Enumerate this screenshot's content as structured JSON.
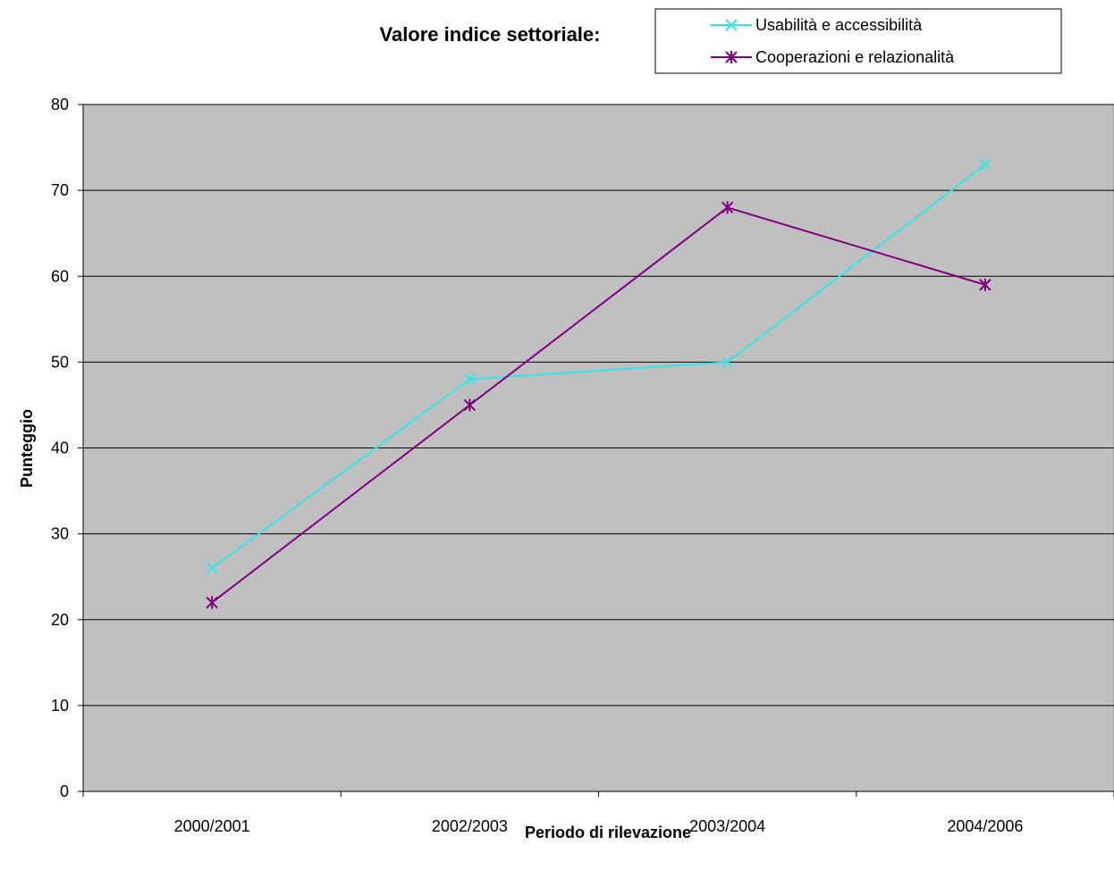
{
  "chart_data": {
    "type": "line",
    "title": "Valore indice settoriale:",
    "xlabel": "Periodo di rilevazione",
    "ylabel": "Punteggio",
    "categories": [
      "2000/2001",
      "2002/2003",
      "2003/2004",
      "2004/2006"
    ],
    "ylim": [
      0,
      80
    ],
    "yticks": [
      0,
      10,
      20,
      30,
      40,
      50,
      60,
      70,
      80
    ],
    "grid": true,
    "legend_position": "top-right",
    "plot_background": "#c0c0c0",
    "series": [
      {
        "name": "Usabilità e accessibilità",
        "values": [
          26,
          48,
          50,
          73
        ],
        "color": "#33e6e6",
        "marker": "x"
      },
      {
        "name": "Cooperazioni e relazionalità",
        "values": [
          22,
          45,
          68,
          59
        ],
        "color": "#800080",
        "marker": "asterisk"
      }
    ]
  }
}
